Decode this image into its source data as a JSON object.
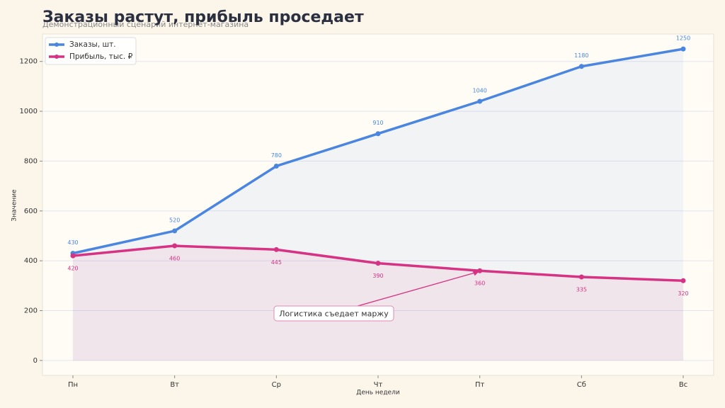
{
  "chart_data": {
    "type": "line",
    "title": "Заказы растут, прибыль проседает",
    "subtitle": "Демонстрационный сценарий интернет-магазина",
    "x_label": "День недели",
    "y_label": "Значение",
    "categories": [
      "Пн",
      "Вт",
      "Ср",
      "Чт",
      "Пт",
      "Сб",
      "Вс"
    ],
    "series": [
      {
        "name": "Заказы, шт.",
        "color": "#4a86e0",
        "values": [
          430,
          520,
          780,
          910,
          1040,
          1180,
          1250
        ]
      },
      {
        "name": "Прибыль, тыс. ₽",
        "color": "#d63384",
        "values": [
          420,
          460,
          445,
          390,
          360,
          335,
          320
        ]
      }
    ],
    "ylim": [
      -60,
      1310
    ],
    "yticks": [
      0,
      200,
      400,
      600,
      800,
      1000,
      1200
    ],
    "grid": true,
    "legend": "upper left",
    "annotation": {
      "text": "Логистика съедает маржу",
      "series": 1,
      "index": 4
    }
  }
}
